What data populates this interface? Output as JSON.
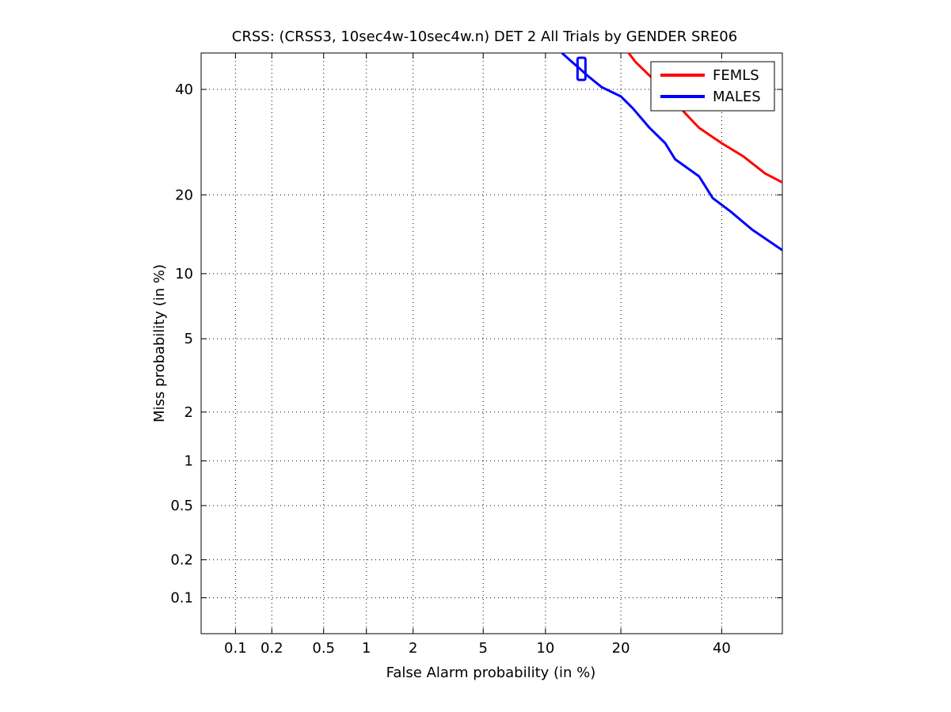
{
  "chart_data": {
    "type": "line",
    "title": "CRSS: (CRSS3, 10sec4w-10sec4w.n) DET 2 All Trials by GENDER SRE06",
    "xlabel": "False Alarm probability (in %)",
    "ylabel": "Miss probability (in %)",
    "scale": "normal-deviate (DET)",
    "xlim": [
      0.05,
      54
    ],
    "ylim": [
      0.05,
      48
    ],
    "xticks": [
      0.1,
      0.2,
      0.5,
      1,
      2,
      5,
      10,
      20,
      40
    ],
    "xtick_labels": [
      "0.1",
      "0.2",
      "0.5",
      "1",
      "2",
      "5",
      "10",
      "20",
      "40"
    ],
    "yticks": [
      0.1,
      0.2,
      0.5,
      1,
      2,
      5,
      10,
      20,
      40
    ],
    "ytick_labels": [
      "0.1",
      "0.2",
      "0.5",
      "1",
      "2",
      "5",
      "10",
      "20",
      "40"
    ],
    "grid": true,
    "legend_position": "top-right",
    "series": [
      {
        "name": "FEMLS",
        "color": "#ff0000",
        "points": [
          [
            21.3,
            48
          ],
          [
            22.5,
            46
          ],
          [
            25,
            43
          ],
          [
            28,
            39.5
          ],
          [
            30,
            37.5
          ],
          [
            32,
            35
          ],
          [
            35,
            32
          ],
          [
            40,
            29
          ],
          [
            45,
            26.5
          ],
          [
            50,
            23.5
          ],
          [
            54,
            22
          ]
        ]
      },
      {
        "name": "MALES",
        "color": "#0000ff",
        "points": [
          [
            11.8,
            48
          ],
          [
            13,
            46
          ],
          [
            14,
            44.5
          ],
          [
            15,
            43
          ],
          [
            17,
            40.5
          ],
          [
            20,
            38.5
          ],
          [
            22,
            36
          ],
          [
            25,
            32
          ],
          [
            28,
            29
          ],
          [
            30,
            26
          ],
          [
            35,
            23
          ],
          [
            38,
            19.5
          ],
          [
            42,
            17.5
          ],
          [
            47,
            15
          ],
          [
            54,
            12.5
          ]
        ]
      }
    ],
    "markers": [
      {
        "series": "MALES",
        "shape": "square",
        "x": 14.2,
        "y": 44.5
      }
    ]
  }
}
